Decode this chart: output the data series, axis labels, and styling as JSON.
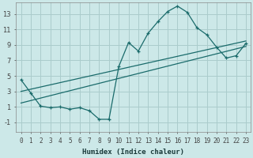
{
  "xlabel": "Humidex (Indice chaleur)",
  "background_color": "#cce8e8",
  "grid_color": "#aacccc",
  "line_color": "#1a6b6b",
  "xlim": [
    -0.5,
    23.5
  ],
  "ylim": [
    -2.2,
    14.5
  ],
  "yticks": [
    -1,
    1,
    3,
    5,
    7,
    9,
    11,
    13
  ],
  "xticks": [
    0,
    1,
    2,
    3,
    4,
    5,
    6,
    7,
    8,
    9,
    10,
    11,
    12,
    13,
    14,
    15,
    16,
    17,
    18,
    19,
    20,
    21,
    22,
    23
  ],
  "curve1_x": [
    0,
    1,
    2,
    3,
    4,
    5,
    6,
    7,
    8,
    9,
    10,
    11,
    12,
    13,
    14,
    15,
    16,
    17,
    18,
    19,
    20,
    21,
    22,
    23
  ],
  "curve1_y": [
    4.5,
    2.8,
    1.1,
    0.9,
    1.0,
    0.7,
    0.9,
    0.5,
    -0.6,
    -0.6,
    6.2,
    9.3,
    8.2,
    10.5,
    12.0,
    13.3,
    14.0,
    13.2,
    11.2,
    10.3,
    8.7,
    7.3,
    7.6,
    9.2
  ],
  "line1_x": [
    0,
    23
  ],
  "line1_y": [
    1.5,
    8.8
  ],
  "line2_x": [
    0,
    23
  ],
  "line2_y": [
    3.0,
    9.5
  ],
  "xlabel_fontsize": 6.5,
  "xlabel_fontweight": "bold",
  "tick_fontsize": 5.5,
  "ytick_fontsize": 6.0
}
